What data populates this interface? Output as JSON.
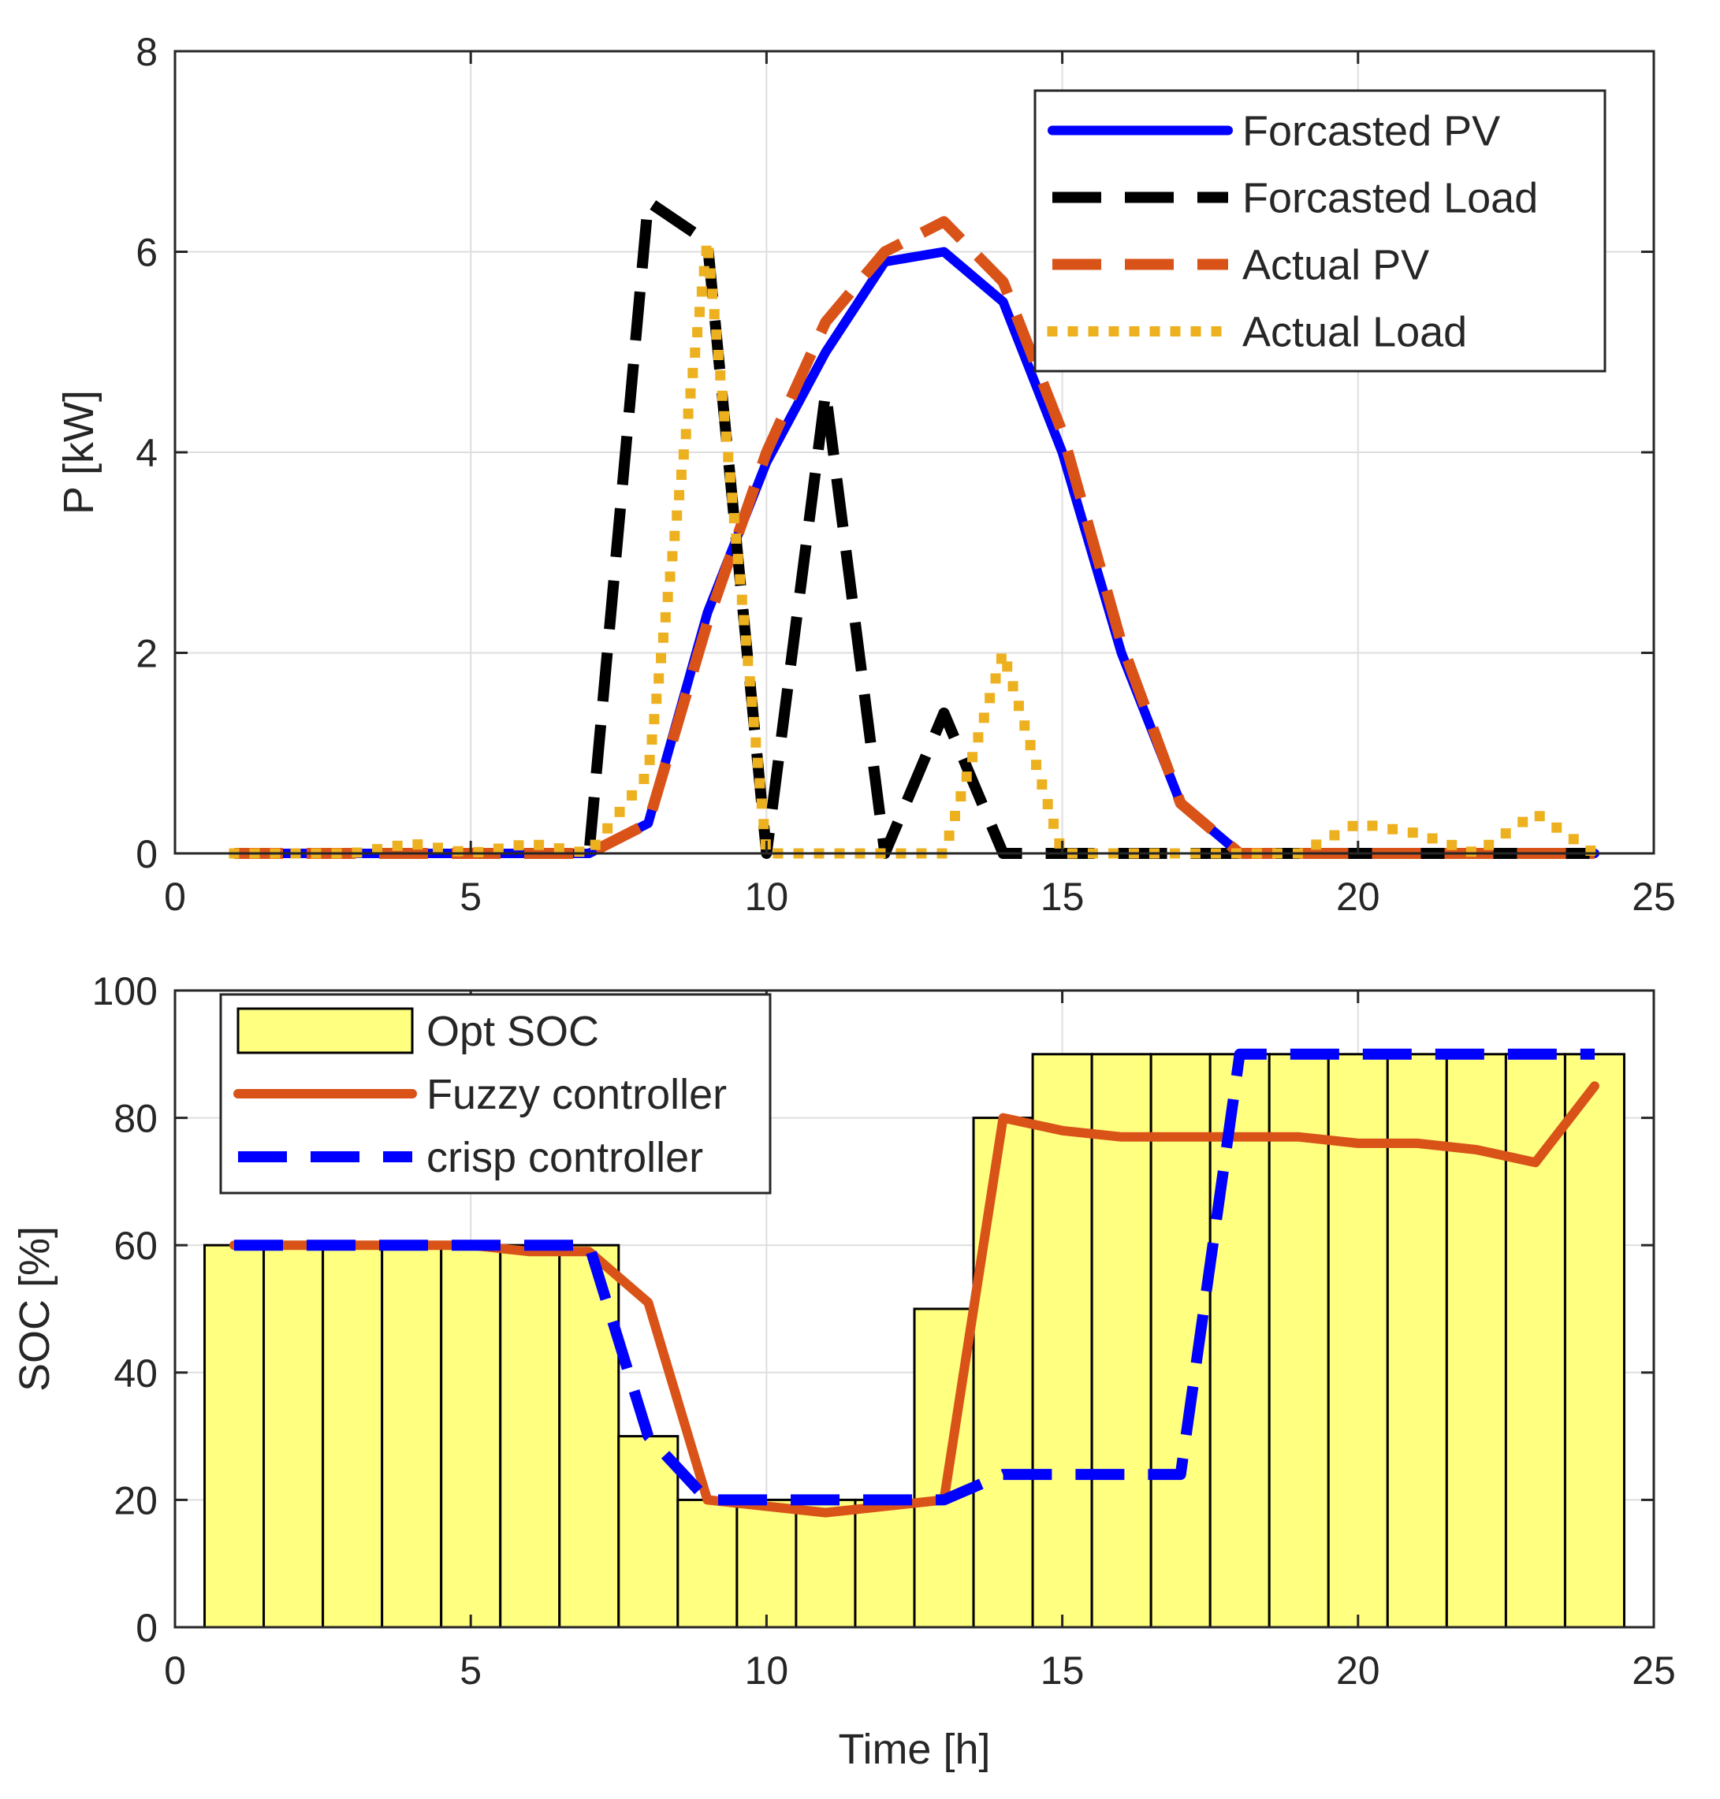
{
  "chart_data": [
    {
      "type": "line",
      "title": "",
      "xlabel": "",
      "ylabel": "P [kW]",
      "xlim": [
        0,
        25
      ],
      "ylim": [
        0,
        8
      ],
      "xticks": [
        0,
        5,
        10,
        15,
        20,
        25
      ],
      "yticks": [
        0,
        2,
        4,
        6,
        8
      ],
      "grid": true,
      "legend_position": "top-right",
      "x": [
        1,
        2,
        3,
        4,
        5,
        6,
        7,
        8,
        9,
        10,
        11,
        12,
        13,
        14,
        15,
        16,
        17,
        18,
        19,
        20,
        21,
        22,
        23,
        24
      ],
      "series": [
        {
          "name": "Forcasted PV",
          "color": "#0000ff",
          "style": "solid",
          "values": [
            0,
            0,
            0,
            0,
            0,
            0,
            0,
            0.3,
            2.4,
            3.9,
            5.0,
            5.9,
            6.0,
            5.5,
            4.0,
            2.0,
            0.5,
            0,
            0,
            0,
            0,
            0,
            0,
            0
          ]
        },
        {
          "name": "Forcasted Load",
          "color": "#000000",
          "style": "dashed",
          "values": [
            0,
            0,
            0,
            0,
            0,
            0,
            0,
            6.5,
            6.1,
            0,
            4.6,
            0,
            1.4,
            0,
            0,
            0,
            0,
            0,
            0,
            0,
            0,
            0,
            0,
            0
          ]
        },
        {
          "name": "Actual PV",
          "color": "#d95319",
          "style": "dashed",
          "values": [
            0,
            0,
            0,
            0,
            0,
            0,
            0,
            0.3,
            2.3,
            4.0,
            5.3,
            6.0,
            6.3,
            5.7,
            4.2,
            2.1,
            0.5,
            0,
            0,
            0,
            0,
            0,
            0,
            0
          ]
        },
        {
          "name": "Actual Load",
          "color": "#edb120",
          "style": "dotted",
          "values": [
            0,
            0,
            0,
            0.1,
            0,
            0.1,
            0,
            0.8,
            6.1,
            0,
            0,
            0,
            0,
            2.0,
            0,
            0,
            0,
            0,
            0,
            0.3,
            0.2,
            0,
            0.4,
            0
          ]
        }
      ]
    },
    {
      "type": "bar",
      "title": "",
      "xlabel": "Time [h]",
      "ylabel": "SOC [%]",
      "xlim": [
        0,
        25
      ],
      "ylim": [
        0,
        100
      ],
      "xticks": [
        0,
        5,
        10,
        15,
        20,
        25
      ],
      "yticks": [
        0,
        20,
        40,
        60,
        80,
        100
      ],
      "grid": true,
      "legend_position": "top-left",
      "x": [
        1,
        2,
        3,
        4,
        5,
        6,
        7,
        8,
        9,
        10,
        11,
        12,
        13,
        14,
        15,
        16,
        17,
        18,
        19,
        20,
        21,
        22,
        23,
        24
      ],
      "series": [
        {
          "name": "Opt SOC",
          "type": "bar",
          "color": "#ffff80",
          "values": [
            60,
            60,
            60,
            60,
            60,
            60,
            60,
            30,
            20,
            20,
            20,
            20,
            50,
            80,
            90,
            90,
            90,
            90,
            90,
            90,
            90,
            90,
            90,
            90
          ]
        },
        {
          "name": "Fuzzy controller",
          "type": "line",
          "color": "#d95319",
          "style": "solid",
          "values": [
            60,
            60,
            60,
            60,
            60,
            59,
            59,
            51,
            20,
            19,
            18,
            19,
            20,
            80,
            78,
            77,
            77,
            77,
            77,
            76,
            76,
            75,
            73,
            85
          ]
        },
        {
          "name": "crisp controller",
          "type": "line",
          "color": "#0000ff",
          "style": "dashed",
          "values": [
            60,
            60,
            60,
            60,
            60,
            60,
            60,
            30,
            20,
            20,
            20,
            20,
            20,
            24,
            24,
            24,
            24,
            90,
            90,
            90,
            90,
            90,
            90,
            90
          ]
        }
      ]
    }
  ]
}
